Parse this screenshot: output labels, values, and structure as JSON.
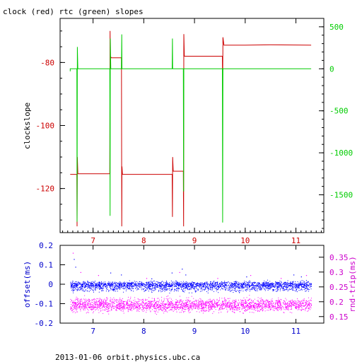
{
  "title": "clock (red) rtc (green) slopes",
  "footer": "2013-01-06  orbit.physics.ubc.ca",
  "colors": {
    "axes": "#000000",
    "clock": "#cc0000",
    "rtc": "#00cc00",
    "offset": "#0000ff",
    "rndtrip": "#ff00ff",
    "offset_axis": "#0000cc",
    "rndtrip_axis": "#cc00cc",
    "left_ticks_top": "#cc0000",
    "right_ticks_top": "#00cc00",
    "x_ticks_top": "#cc0000",
    "x_ticks_bottom": "#0000cc"
  },
  "chart_data": [
    {
      "type": "line",
      "title": "clock (red) rtc (green) slopes",
      "xlabel": "",
      "ylabel": "clockslope",
      "xlim": [
        6.35,
        11.55
      ],
      "ylim": [
        -134,
        -66
      ],
      "x_ticks": [
        "7",
        "8",
        "9",
        "10",
        "11"
      ],
      "y_ticks": [
        "-80",
        "-100",
        "-120"
      ],
      "y2label": "",
      "y2lim": [
        -1950,
        600
      ],
      "y2_ticks": [
        "500",
        "0",
        "-500",
        "-1000",
        "-1500"
      ],
      "grid": false,
      "series": [
        {
          "name": "clock",
          "axis": "left",
          "x": [
            6.55,
            6.68,
            6.685,
            6.69,
            6.7,
            7.33,
            7.335,
            7.34,
            7.36,
            7.56,
            7.565,
            7.57,
            7.58,
            8.56,
            8.565,
            8.57,
            8.58,
            8.78,
            8.785,
            8.79,
            8.8,
            9.55,
            9.555,
            9.56,
            9.58,
            10.0,
            10.5,
            11.3
          ],
          "y": [
            -115.5,
            -115.5,
            -132,
            -110,
            -115.3,
            -115.3,
            -70,
            -78,
            -78.5,
            -78.5,
            -132,
            -113,
            -115.5,
            -115.5,
            -129,
            -110,
            -114.5,
            -114.5,
            -132,
            -71,
            -78,
            -78,
            -89,
            -72,
            -74.5,
            -74.5,
            -74.4,
            -74.5
          ]
        },
        {
          "name": "rtc",
          "axis": "right",
          "x": [
            6.55,
            6.55,
            6.68,
            6.685,
            6.69,
            6.7,
            7.33,
            7.335,
            7.34,
            7.35,
            7.56,
            7.565,
            7.57,
            8.56,
            8.565,
            8.57,
            8.78,
            8.785,
            8.79,
            9.55,
            9.555,
            9.56,
            11.3
          ],
          "y": [
            -30,
            0,
            0,
            -1820,
            260,
            0,
            0,
            -1750,
            360,
            0,
            0,
            410,
            0,
            0,
            360,
            0,
            0,
            -1460,
            0,
            0,
            -1830,
            0,
            0
          ]
        }
      ]
    },
    {
      "type": "scatter",
      "title": "",
      "xlabel": "",
      "ylabel": "offset(ms)",
      "xlim": [
        6.35,
        11.55
      ],
      "ylim": [
        -0.2,
        0.2
      ],
      "x_ticks": [
        "7",
        "8",
        "9",
        "10",
        "11"
      ],
      "y_ticks": [
        "0.2",
        "0.1",
        "0",
        "-0.1",
        "-0.2"
      ],
      "y2label": "rnd-trip(ms)",
      "y2lim": [
        0.128,
        0.39
      ],
      "y2_ticks": [
        "0.35",
        "0.3",
        "0.25",
        "0.2",
        "0.15"
      ],
      "grid": false,
      "series": [
        {
          "name": "offset",
          "axis": "left",
          "x_range": [
            6.55,
            11.3
          ],
          "center": 0.0,
          "spread": 0.022,
          "low_band": -0.02,
          "low_spread": 0.012,
          "outliers": [
            [
              6.62,
              0.13
            ],
            [
              6.65,
              0.09
            ],
            [
              7.34,
              0.06
            ],
            [
              7.55,
              0.05
            ],
            [
              8.15,
              0.03
            ],
            [
              8.55,
              0.06
            ],
            [
              8.75,
              0.08
            ],
            [
              8.82,
              0.05
            ],
            [
              10.02,
              0.04
            ],
            [
              10.95,
              0.05
            ],
            [
              11.1,
              0.04
            ]
          ]
        },
        {
          "name": "rnd-trip",
          "axis": "right",
          "x_range": [
            6.55,
            11.3
          ],
          "center": 0.19,
          "spread": 0.03,
          "outliers": [
            [
              6.6,
              0.365
            ],
            [
              6.75,
              0.3
            ],
            [
              7.1,
              0.29
            ],
            [
              8.05,
              0.28
            ],
            [
              8.7,
              0.3
            ],
            [
              9.45,
              0.28
            ],
            [
              10.1,
              0.29
            ],
            [
              10.7,
              0.28
            ],
            [
              11.2,
              0.29
            ]
          ]
        }
      ]
    }
  ]
}
